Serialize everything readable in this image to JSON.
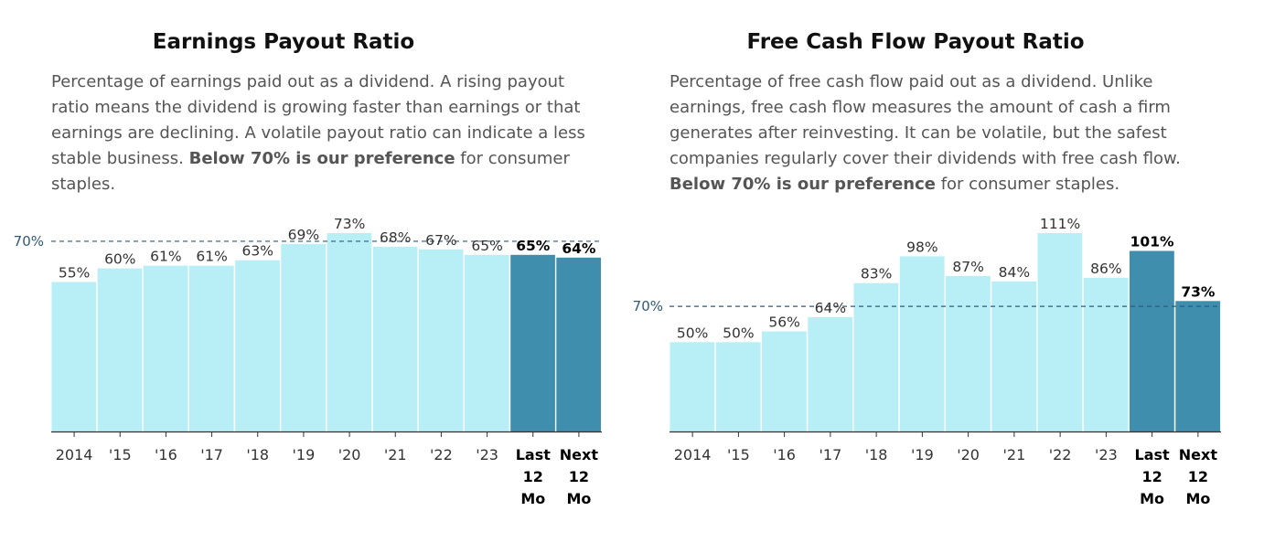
{
  "panels": [
    {
      "title": "Earnings Payout Ratio",
      "description": {
        "before_bold": "Percentage of earnings paid out as a dividend. A rising payout ratio means the dividend is growing faster than earnings or that earnings are declining. A volatile payout ratio can indicate a less stable business. ",
        "bold": "Below 70% is our preference",
        "after_bold": " for consumer staples."
      }
    },
    {
      "title": "Free Cash Flow Payout Ratio",
      "description": {
        "before_bold": "Percentage of free cash flow paid out as a dividend. Unlike earnings, free cash flow measures the amount of cash a firm generates after reinvesting. It can be volatile, but the safest companies regularly cover their dividends with free cash flow. ",
        "bold": "Below 70% is our preference",
        "after_bold": " for consumer staples."
      }
    }
  ],
  "colors": {
    "bar_light": "#b8eff7",
    "bar_dark": "#3f8eae",
    "reference_line": "#2e5a7a",
    "axis": "#333333"
  },
  "chart_data": [
    {
      "type": "bar",
      "title": "Earnings Payout Ratio",
      "categories": [
        "2014",
        "'15",
        "'16",
        "'17",
        "'18",
        "'19",
        "'20",
        "'21",
        "'22",
        "'23",
        "Last 12 Mo",
        "Next 12 Mo"
      ],
      "values": [
        55,
        60,
        61,
        61,
        63,
        69,
        73,
        68,
        67,
        65,
        65,
        64
      ],
      "value_labels": [
        "55%",
        "60%",
        "61%",
        "61%",
        "63%",
        "69%",
        "73%",
        "68%",
        "67%",
        "65%",
        "65%",
        "64%"
      ],
      "highlighted": [
        false,
        false,
        false,
        false,
        false,
        false,
        false,
        false,
        false,
        false,
        true,
        true
      ],
      "reference": {
        "value": 70,
        "label": "70%"
      },
      "ylim": [
        0,
        73
      ],
      "unit": "%"
    },
    {
      "type": "bar",
      "title": "Free Cash Flow Payout Ratio",
      "categories": [
        "2014",
        "'15",
        "'16",
        "'17",
        "'18",
        "'19",
        "'20",
        "'21",
        "'22",
        "'23",
        "Last 12 Mo",
        "Next 12 Mo"
      ],
      "values": [
        50,
        50,
        56,
        64,
        83,
        98,
        87,
        84,
        111,
        86,
        101,
        73
      ],
      "value_labels": [
        "50%",
        "50%",
        "56%",
        "64%",
        "83%",
        "98%",
        "87%",
        "84%",
        "111%",
        "86%",
        "101%",
        "73%"
      ],
      "highlighted": [
        false,
        false,
        false,
        false,
        false,
        false,
        false,
        false,
        false,
        false,
        true,
        true
      ],
      "reference": {
        "value": 70,
        "label": "70%"
      },
      "ylim": [
        0,
        111
      ],
      "unit": "%"
    }
  ]
}
